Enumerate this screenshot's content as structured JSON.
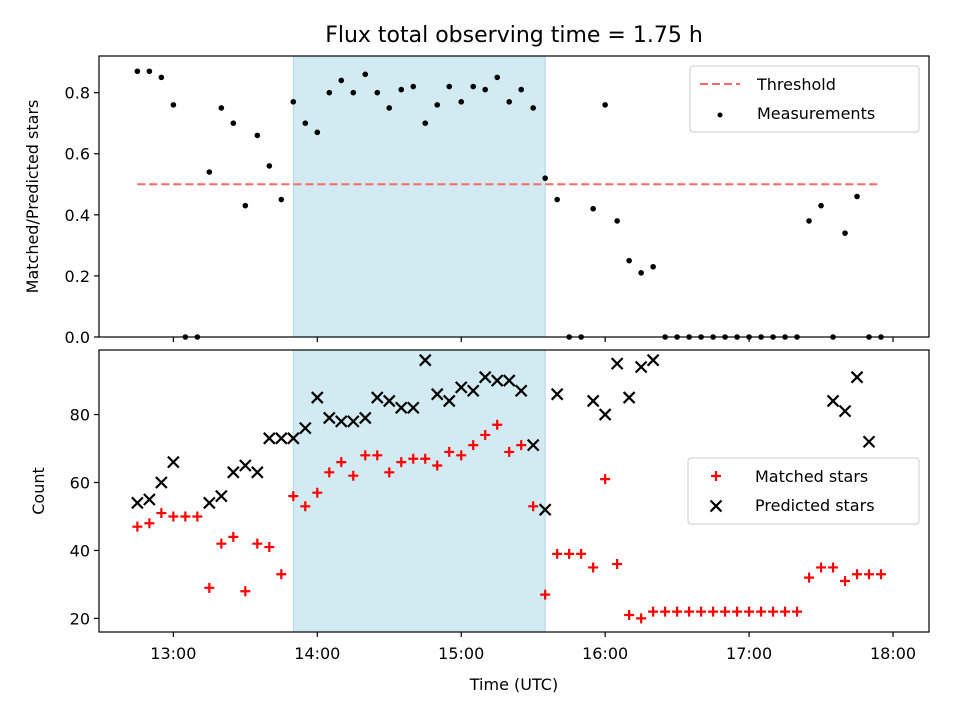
{
  "title": "Flux total observing time = 1.75 h",
  "colors": {
    "shade": "#add8e6",
    "threshold": "#ff6666",
    "measurements": "#000000",
    "matched": "#ff0000",
    "predicted": "#000000"
  },
  "chart_data": [
    {
      "type": "scatter",
      "ylabel": "Matched/Predicted stars",
      "xlabel": "",
      "x_axis": "Time (UTC)",
      "xlim": [
        "12:29",
        "18:15"
      ],
      "ylim": [
        0,
        0.92
      ],
      "yticks": [
        "0.0",
        "0.2",
        "0.4",
        "0.6",
        "0.8"
      ],
      "ytick_values": [
        0,
        0.2,
        0.4,
        0.6,
        0.8
      ],
      "shaded_span": [
        "13:50",
        "15:35"
      ],
      "legend": {
        "position": "upper right",
        "entries": [
          "Threshold",
          "Measurements"
        ]
      },
      "threshold": {
        "name": "Threshold",
        "style": "dashed",
        "x": [
          "12:45",
          "17:55"
        ],
        "y": 0.5
      },
      "series": [
        {
          "name": "Measurements",
          "marker": "dot",
          "x": [
            "12:45",
            "12:50",
            "12:55",
            "13:00",
            "13:05",
            "13:10",
            "13:15",
            "13:20",
            "13:25",
            "13:30",
            "13:35",
            "13:40",
            "13:45",
            "13:50",
            "13:55",
            "14:00",
            "14:05",
            "14:10",
            "14:15",
            "14:20",
            "14:25",
            "14:30",
            "14:35",
            "14:40",
            "14:45",
            "14:50",
            "14:55",
            "15:00",
            "15:05",
            "15:10",
            "15:15",
            "15:20",
            "15:25",
            "15:30",
            "15:35",
            "15:40",
            "15:45",
            "15:50",
            "15:55",
            "16:00",
            "16:05",
            "16:10",
            "16:15",
            "16:20",
            "16:25",
            "16:30",
            "16:35",
            "16:40",
            "16:45",
            "16:50",
            "16:55",
            "17:00",
            "17:05",
            "17:10",
            "17:15",
            "17:20",
            "17:25",
            "17:30",
            "17:35",
            "17:40",
            "17:45",
            "17:50",
            "17:55"
          ],
          "y": [
            0.87,
            0.87,
            0.85,
            0.76,
            0,
            0,
            0.54,
            0.75,
            0.7,
            0.43,
            0.66,
            0.56,
            0.45,
            0.77,
            0.7,
            0.67,
            0.8,
            0.84,
            0.8,
            0.86,
            0.8,
            0.75,
            0.81,
            0.82,
            0.7,
            0.76,
            0.82,
            0.77,
            0.82,
            0.81,
            0.85,
            0.77,
            0.81,
            0.75,
            0.52,
            0.45,
            0,
            0,
            0.42,
            0.76,
            0.38,
            0.25,
            0.21,
            0.23,
            0,
            0,
            0,
            0,
            0,
            0,
            0,
            0,
            0,
            0,
            0,
            0,
            0.38,
            0.43,
            0,
            0.34,
            0.46,
            0,
            0
          ]
        }
      ]
    },
    {
      "type": "scatter",
      "ylabel": "Count",
      "xlabel": "Time (UTC)",
      "xlim": [
        "12:29",
        "18:15"
      ],
      "ylim": [
        16,
        99
      ],
      "yticks": [
        "20",
        "40",
        "60",
        "80"
      ],
      "ytick_values": [
        20,
        40,
        60,
        80
      ],
      "xticks": [
        "13:00",
        "14:00",
        "15:00",
        "16:00",
        "17:00",
        "18:00"
      ],
      "shaded_span": [
        "13:50",
        "15:35"
      ],
      "legend": {
        "position": "center right",
        "entries": [
          "Matched stars",
          "Predicted stars"
        ]
      },
      "series": [
        {
          "name": "Matched stars",
          "marker": "plus",
          "x": [
            "12:45",
            "12:50",
            "12:55",
            "13:00",
            "13:05",
            "13:10",
            "13:15",
            "13:20",
            "13:25",
            "13:30",
            "13:35",
            "13:40",
            "13:45",
            "13:50",
            "13:55",
            "14:00",
            "14:05",
            "14:10",
            "14:15",
            "14:20",
            "14:25",
            "14:30",
            "14:35",
            "14:40",
            "14:45",
            "14:50",
            "14:55",
            "15:00",
            "15:05",
            "15:10",
            "15:15",
            "15:20",
            "15:25",
            "15:30",
            "15:35",
            "15:40",
            "15:45",
            "15:50",
            "15:55",
            "16:00",
            "16:05",
            "16:10",
            "16:15",
            "16:20",
            "16:25",
            "16:30",
            "16:35",
            "16:40",
            "16:45",
            "16:50",
            "16:55",
            "17:00",
            "17:05",
            "17:10",
            "17:15",
            "17:20",
            "17:25",
            "17:30",
            "17:35",
            "17:40",
            "17:45",
            "17:50",
            "17:55"
          ],
          "y": [
            47,
            48,
            51,
            50,
            50,
            50,
            29,
            42,
            44,
            28,
            42,
            41,
            33,
            56,
            53,
            57,
            63,
            66,
            62,
            68,
            68,
            63,
            66,
            67,
            67,
            65,
            69,
            68,
            71,
            74,
            77,
            69,
            71,
            53,
            27,
            39,
            39,
            39,
            35,
            61,
            36,
            21,
            20,
            22,
            22,
            22,
            22,
            22,
            22,
            22,
            22,
            22,
            22,
            22,
            22,
            22,
            32,
            35,
            35,
            31,
            33,
            33,
            33
          ]
        },
        {
          "name": "Predicted stars",
          "marker": "x",
          "x": [
            "12:45",
            "12:50",
            "12:55",
            "13:00",
            "13:15",
            "13:20",
            "13:25",
            "13:30",
            "13:35",
            "13:40",
            "13:45",
            "13:50",
            "13:55",
            "14:00",
            "14:05",
            "14:10",
            "14:15",
            "14:20",
            "14:25",
            "14:30",
            "14:35",
            "14:40",
            "14:45",
            "14:50",
            "14:55",
            "15:00",
            "15:05",
            "15:10",
            "15:15",
            "15:20",
            "15:25",
            "15:30",
            "15:35",
            "15:40",
            "15:55",
            "16:00",
            "16:05",
            "16:10",
            "16:15",
            "16:20",
            "17:35",
            "17:40",
            "17:45",
            "17:50"
          ],
          "y": [
            54,
            55,
            60,
            66,
            54,
            56,
            63,
            65,
            63,
            73,
            73,
            73,
            76,
            85,
            79,
            78,
            78,
            79,
            85,
            84,
            82,
            82,
            96,
            86,
            84,
            88,
            87,
            91,
            90,
            90,
            87,
            71,
            52,
            86,
            84,
            80,
            95,
            85,
            94,
            96,
            84,
            81,
            91,
            72
          ]
        }
      ]
    }
  ]
}
